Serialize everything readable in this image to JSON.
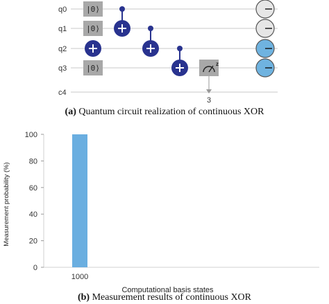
{
  "circuit": {
    "qubits": [
      "q0",
      "q1",
      "q2",
      "q3"
    ],
    "classical_register": "c4",
    "init_labels": [
      "|0⟩",
      "|0⟩",
      "",
      "|0⟩"
    ],
    "measure_target": "3",
    "measure_label": "z",
    "state_indicators": [
      {
        "qubit": "q0",
        "fill": "#e6e6e6"
      },
      {
        "qubit": "q1",
        "fill": "#e6e6e6"
      },
      {
        "qubit": "q2",
        "fill": "#6fb3e0"
      },
      {
        "qubit": "q3",
        "fill": "#6fb3e0"
      }
    ]
  },
  "captions": {
    "a_prefix": "(a)",
    "a_text": "Quantum circuit realization of continuous XOR",
    "b_prefix": "(b)",
    "b_text": "Measurement results of continuous XOR"
  },
  "colors": {
    "gate_blue": "#29338f",
    "bar_blue": "#6aaee0",
    "gate_gray": "#a8a8a8",
    "axis": "#333333"
  },
  "chart_data": {
    "type": "bar",
    "categories": [
      "1000"
    ],
    "values": [
      100
    ],
    "xlabel": "Computational basis states",
    "ylabel": "Measurement probability (%)",
    "ylim": [
      0,
      100
    ],
    "yticks": [
      0,
      20,
      40,
      60,
      80,
      100
    ],
    "grid": false
  }
}
